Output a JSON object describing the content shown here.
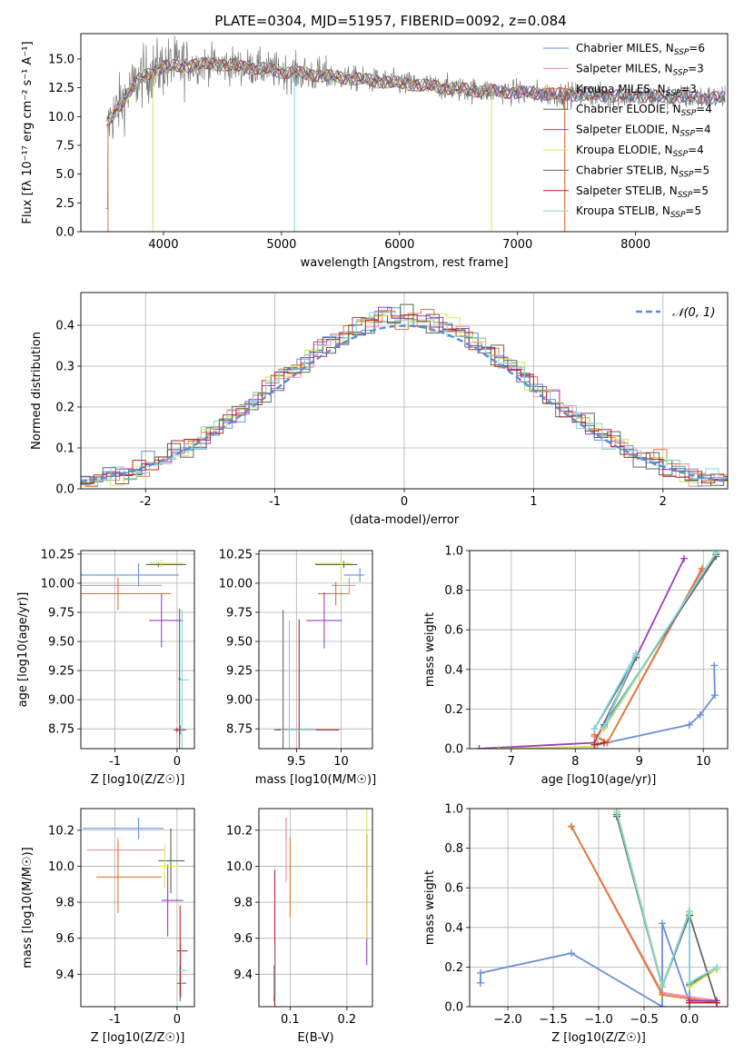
{
  "figure_title": "PLATE=0304, MJD=51957, FIBERID=0092, z=0.084",
  "colors": {
    "Chabrier MILES": "#6a8fd6",
    "Salpeter MILES": "#ea8fa6",
    "Kroupa MILES": "#e07833",
    "Chabrier ELODIE": "#4f6b45",
    "Salpeter ELODIE": "#9b3dbf",
    "Kroupa ELODIE": "#d9e35a",
    "Chabrier STELIB": "#666666",
    "Salpeter STELIB": "#b82828",
    "Kroupa STELIB": "#7fd6dd"
  },
  "chart_data": [
    {
      "id": "spectrum",
      "type": "line",
      "title": "PLATE=0304, MJD=51957, FIBERID=0092, z=0.084",
      "xlabel": "wavelength [Angstrom, rest frame]",
      "ylabel": "Flux [fλ 10⁻¹⁷ erg cm⁻² s⁻¹ A⁻¹]",
      "xlim": [
        3300,
        8780
      ],
      "ylim": [
        0,
        17.2
      ],
      "xticks": [
        4000,
        5000,
        6000,
        7000,
        8000
      ],
      "yticks": [
        0.0,
        2.5,
        5.0,
        7.5,
        10.0,
        12.5,
        15.0
      ],
      "grid": false,
      "legend_position": "upper right",
      "legend": [
        "Chabrier MILES, N_SSP=6",
        "Salpeter MILES, N_SSP=3",
        "Kroupa MILES, N_SSP=3",
        "Chabrier ELODIE, N_SSP=4",
        "Salpeter ELODIE, N_SSP=4",
        "Kroupa ELODIE, N_SSP=4",
        "Chabrier STELIB, N_SSP=5",
        "Salpeter STELIB, N_SSP=5",
        "Kroupa STELIB, N_SSP=5"
      ],
      "continuum": {
        "x": [
          3510,
          3600,
          3700,
          3800,
          3900,
          4000,
          4100,
          4200,
          4400,
          4600,
          4800,
          5000,
          5200,
          5400,
          5600,
          5800,
          6000,
          6200,
          6400,
          6600,
          6800,
          7000,
          7200,
          7400,
          7600,
          7800,
          8000,
          8200,
          8400,
          8760
        ],
        "y": [
          9.2,
          10.6,
          12.0,
          13.3,
          13.9,
          14.3,
          14.4,
          14.4,
          14.6,
          14.4,
          14.2,
          13.9,
          13.7,
          13.5,
          13.3,
          13.1,
          12.9,
          12.7,
          12.5,
          12.3,
          12.2,
          12.1,
          12.0,
          11.9,
          11.9,
          11.8,
          11.8,
          11.7,
          11.7,
          11.6
        ]
      }
    },
    {
      "id": "residuals",
      "type": "histogram",
      "xlabel": "(data-model)/error",
      "ylabel": "Normed distribution",
      "xlim": [
        -2.5,
        2.5
      ],
      "ylim": [
        0,
        0.48
      ],
      "xticks": [
        -2,
        -1,
        0,
        1,
        2
      ],
      "yticks": [
        0.0,
        0.1,
        0.2,
        0.3,
        0.4
      ],
      "grid": true,
      "legend": [
        "𝒩(0, 1)"
      ],
      "legend_position": "upper right",
      "bin_width": 0.1
    },
    {
      "id": "age_vs_z",
      "type": "errorbar",
      "xlabel": "Z [log10(Z/Z☉)]",
      "ylabel": "age  [log10(age/yr)]",
      "xlim": [
        -1.55,
        0.28
      ],
      "ylim": [
        8.58,
        10.28
      ],
      "xticks": [
        -1,
        0
      ],
      "yticks": [
        8.75,
        9.0,
        9.25,
        9.5,
        9.75,
        10.0,
        10.25
      ],
      "ytick_labels": [
        "8.75",
        "9.00",
        "9.25",
        "9.50",
        "9.75",
        "10.00",
        "10.25"
      ],
      "grid": true,
      "points": [
        {
          "series": "Chabrier MILES",
          "x": -0.62,
          "xerr": [
            0.95,
            0.65
          ],
          "y": 10.07,
          "yerr": 0.1
        },
        {
          "series": "Salpeter MILES",
          "x": -0.95,
          "xerr": [
            0.6,
            0.7
          ],
          "y": 9.98,
          "yerr": 0.07
        },
        {
          "series": "Kroupa MILES",
          "x": -0.95,
          "xerr": [
            0.6,
            0.85
          ],
          "y": 9.91,
          "yerr": 0.14
        },
        {
          "series": "Chabrier ELODIE",
          "x": -0.3,
          "xerr": [
            0.2,
            0.45
          ],
          "y": 10.16,
          "yerr": 0.02
        },
        {
          "series": "Salpeter ELODIE",
          "x": -0.25,
          "xerr": [
            0.2,
            0.35
          ],
          "y": 9.68,
          "yerr": 0.23
        },
        {
          "series": "Kroupa ELODIE",
          "x": -0.25,
          "xerr": [
            0.2,
            0.35
          ],
          "y": 10.17,
          "yerr": 0.03
        },
        {
          "series": "Chabrier STELIB",
          "x": 0.05,
          "xerr": [
            0.05,
            0.1
          ],
          "y": 8.74,
          "yerr": 0.04
        },
        {
          "series": "Salpeter STELIB",
          "x": 0.0,
          "xerr": [
            0.05,
            0.12
          ],
          "y": 8.74,
          "yerr": 0.02
        },
        {
          "series": "Kroupa STELIB",
          "x": 0.08,
          "xerr": [
            0.05,
            0.12
          ],
          "y": 9.17,
          "yerr": 0.6
        },
        {
          "series": "Chabrier STELIB",
          "x": 0.04,
          "xerr": [
            0.02,
            0.02
          ],
          "y": 9.18,
          "yerr": 0.6
        }
      ]
    },
    {
      "id": "age_vs_mass",
      "type": "errorbar",
      "xlabel": "mass [log10(M/M☉)]",
      "xlim": [
        9.08,
        10.35
      ],
      "ylim": [
        8.58,
        10.28
      ],
      "xticks": [
        9.5,
        10.0
      ],
      "yticks": [
        8.75,
        9.0,
        9.25,
        9.5,
        9.75,
        10.0,
        10.25
      ],
      "ytick_labels": [
        "8.75",
        "9.00",
        "9.25",
        "9.50",
        "9.75",
        "10.00",
        "10.25"
      ],
      "grid": true,
      "points": [
        {
          "series": "Chabrier MILES",
          "x": 10.21,
          "xerr": [
            0.18,
            0.05
          ],
          "y": 10.07,
          "yerr": 0.06
        },
        {
          "series": "Salpeter MILES",
          "x": 10.09,
          "xerr": [
            0.2,
            0.07
          ],
          "y": 9.98,
          "yerr": 0.07
        },
        {
          "series": "Kroupa MILES",
          "x": 9.94,
          "xerr": [
            0.2,
            0.15
          ],
          "y": 9.91,
          "yerr": 0.1
        },
        {
          "series": "Chabrier ELODIE",
          "x": 10.03,
          "xerr": [
            0.32,
            0.15
          ],
          "y": 10.16,
          "yerr": 0.03
        },
        {
          "series": "Salpeter ELODIE",
          "x": 9.81,
          "xerr": [
            0.2,
            0.2
          ],
          "y": 9.68,
          "yerr": 0.24
        },
        {
          "series": "Kroupa ELODIE",
          "x": 10.0,
          "xerr": [
            0.3,
            0.12
          ],
          "y": 10.17,
          "yerr": 0.2
        },
        {
          "series": "Chabrier STELIB",
          "x": 9.35,
          "xerr": [
            0.1,
            0.2
          ],
          "y": 8.74,
          "yerr": 1.03
        },
        {
          "series": "Salpeter STELIB",
          "x": 9.53,
          "xerr": [
            0.25,
            0.45
          ],
          "y": 8.74,
          "yerr": 0.95
        },
        {
          "series": "Kroupa STELIB",
          "x": 9.42,
          "xerr": [
            0.1,
            0.3
          ],
          "y": 8.74,
          "yerr": 0.94
        }
      ]
    },
    {
      "id": "mass_weight_vs_age",
      "type": "line",
      "xlabel": "age  [log10(age/yr)]",
      "ylabel": "mass weight",
      "xlim": [
        6.35,
        10.38
      ],
      "ylim": [
        0,
        1.0
      ],
      "xticks": [
        7,
        8,
        9,
        10
      ],
      "yticks": [
        0.0,
        0.2,
        0.4,
        0.6,
        0.8,
        1.0
      ],
      "grid": true,
      "series": [
        {
          "name": "Chabrier MILES",
          "x": [
            8.35,
            9.78,
            9.95,
            10.18,
            10.17
          ],
          "y": [
            0.02,
            0.12,
            0.17,
            0.27,
            0.42
          ]
        },
        {
          "name": "Salpeter MILES",
          "x": [
            8.3,
            8.5,
            9.98
          ],
          "y": [
            0.06,
            0.03,
            0.9
          ]
        },
        {
          "name": "Kroupa MILES",
          "x": [
            8.3,
            8.5,
            9.98
          ],
          "y": [
            0.07,
            0.03,
            0.91
          ]
        },
        {
          "name": "Chabrier ELODIE",
          "x": [
            8.3,
            8.95,
            8.45,
            10.2
          ],
          "y": [
            0.01,
            0.47,
            0.11,
            0.98
          ]
        },
        {
          "name": "Salpeter ELODIE",
          "x": [
            6.5,
            8.3,
            9.7
          ],
          "y": [
            0.0,
            0.03,
            0.96
          ]
        },
        {
          "name": "Kroupa ELODIE",
          "x": [
            6.8,
            8.3,
            8.95,
            8.45,
            10.2
          ],
          "y": [
            0.0,
            0.01,
            0.47,
            0.1,
            0.99
          ]
        },
        {
          "name": "Chabrier STELIB",
          "x": [
            8.3,
            8.95,
            8.45,
            10.2
          ],
          "y": [
            0.1,
            0.46,
            0.12,
            0.97
          ]
        },
        {
          "name": "Salpeter STELIB",
          "x": [
            8.3,
            8.45
          ],
          "y": [
            0.02,
            0.03
          ]
        },
        {
          "name": "Kroupa STELIB",
          "x": [
            8.3,
            8.95,
            8.45,
            10.2
          ],
          "y": [
            0.1,
            0.48,
            0.11,
            0.99
          ]
        }
      ]
    },
    {
      "id": "mass_vs_z",
      "type": "errorbar",
      "xlabel": "Z [log10(Z/Z☉)]",
      "ylabel": "mass [log10(M/M☉)]",
      "xlim": [
        -1.55,
        0.28
      ],
      "ylim": [
        9.22,
        10.32
      ],
      "xticks": [
        -1,
        0
      ],
      "yticks": [
        9.4,
        9.6,
        9.8,
        10.0,
        10.2
      ],
      "grid": true,
      "points": [
        {
          "series": "Chabrier MILES",
          "x": -0.62,
          "xerr": [
            0.9,
            0.4
          ],
          "y": 10.21,
          "yerr": 0.06
        },
        {
          "series": "Salpeter MILES",
          "x": -0.95,
          "xerr": [
            0.5,
            0.75
          ],
          "y": 10.09,
          "yerr": 0.07
        },
        {
          "series": "Kroupa MILES",
          "x": -0.95,
          "xerr": [
            0.35,
            0.7
          ],
          "y": 9.94,
          "yerr": 0.2
        },
        {
          "series": "Chabrier ELODIE",
          "x": -0.1,
          "xerr": [
            0.2,
            0.22
          ],
          "y": 10.03,
          "yerr": 0.18
        },
        {
          "series": "Salpeter ELODIE",
          "x": -0.15,
          "xerr": [
            0.1,
            0.25
          ],
          "y": 9.81,
          "yerr": 0.2
        },
        {
          "series": "Kroupa ELODIE",
          "x": -0.2,
          "xerr": [
            0.1,
            0.22
          ],
          "y": 10.0,
          "yerr": 0.12
        },
        {
          "series": "Chabrier STELIB",
          "x": 0.05,
          "xerr": [
            0.05,
            0.1
          ],
          "y": 9.35,
          "yerr": 0.1
        },
        {
          "series": "Salpeter STELIB",
          "x": 0.05,
          "xerr": [
            0.05,
            0.12
          ],
          "y": 9.53,
          "yerr": 0.25
        },
        {
          "series": "Kroupa STELIB",
          "x": 0.07,
          "xerr": [
            0.05,
            0.1
          ],
          "y": 9.42,
          "yerr": 0.15
        }
      ]
    },
    {
      "id": "mass_vs_ebv",
      "type": "errorbar",
      "xlabel": "E(B-V)",
      "xlim": [
        0.045,
        0.245
      ],
      "ylim": [
        9.22,
        10.32
      ],
      "xticks": [
        0.1,
        0.2
      ],
      "yticks": [
        9.4,
        9.6,
        9.8,
        10.0,
        10.2
      ],
      "grid": true,
      "points": [
        {
          "series": "Chabrier MILES",
          "x": 0.093,
          "y": 10.21,
          "yerr": 0.06
        },
        {
          "series": "Salpeter MILES",
          "x": 0.093,
          "y": 10.09,
          "yerr": 0.18
        },
        {
          "series": "Kroupa MILES",
          "x": 0.1,
          "y": 9.94,
          "yerr": 0.22
        },
        {
          "series": "Chabrier ELODIE",
          "x": 0.235,
          "y": 10.03,
          "yerr": 0.15
        },
        {
          "series": "Salpeter ELODIE",
          "x": 0.235,
          "y": 9.81,
          "yerr": 0.36
        },
        {
          "series": "Kroupa ELODIE",
          "x": 0.235,
          "y": 10.0,
          "yerr": 0.4
        },
        {
          "series": "Chabrier STELIB",
          "x": 0.072,
          "y": 9.35,
          "yerr": 0.1
        },
        {
          "series": "Salpeter STELIB",
          "x": 0.073,
          "y": 9.53,
          "yerr": 0.45
        },
        {
          "series": "Kroupa STELIB",
          "x": 0.074,
          "y": 9.42,
          "yerr": 0.15
        }
      ]
    },
    {
      "id": "mass_weight_vs_z",
      "type": "line",
      "xlabel": "Z [log10(Z/Z☉)]",
      "ylabel": "mass weight",
      "xlim": [
        -2.42,
        0.42
      ],
      "ylim": [
        0,
        1.0
      ],
      "xticks": [
        -2.0,
        -1.5,
        -1.0,
        -0.5,
        0.0
      ],
      "xtick_labels": [
        "−2.0",
        "−1.5",
        "−1.0",
        "−0.5",
        "0.0"
      ],
      "yticks": [
        0.0,
        0.2,
        0.4,
        0.6,
        0.8,
        1.0
      ],
      "grid": true,
      "series": [
        {
          "name": "Chabrier MILES",
          "x": [
            -2.3,
            -2.3,
            -1.3,
            -0.3,
            -0.3,
            0.0,
            0.0
          ],
          "y": [
            0.12,
            0.17,
            0.27,
            0.0,
            0.42,
            0.02,
            0.47
          ]
        },
        {
          "name": "Salpeter MILES",
          "x": [
            -1.3,
            -0.3,
            0.3
          ],
          "y": [
            0.91,
            0.07,
            0.03
          ]
        },
        {
          "name": "Kroupa MILES",
          "x": [
            -1.3,
            -0.3,
            0.3
          ],
          "y": [
            0.91,
            0.06,
            0.02
          ]
        },
        {
          "name": "Chabrier ELODIE",
          "x": [
            -0.8,
            -0.3,
            0.0,
            0.0,
            0.3
          ],
          "y": [
            0.97,
            0.1,
            0.48,
            0.11,
            0.19
          ]
        },
        {
          "name": "Salpeter ELODIE",
          "x": [
            0.0,
            0.3
          ],
          "y": [
            0.03,
            0.03
          ]
        },
        {
          "name": "Kroupa ELODIE",
          "x": [
            -0.8,
            -0.3,
            0.0,
            0.0,
            0.3
          ],
          "y": [
            0.99,
            0.11,
            0.47,
            0.1,
            0.19
          ]
        },
        {
          "name": "Chabrier STELIB",
          "x": [
            -0.8,
            -0.3,
            0.0,
            0.3
          ],
          "y": [
            0.96,
            0.1,
            0.46,
            0.02
          ]
        },
        {
          "name": "Salpeter STELIB",
          "x": [
            0.0,
            0.3
          ],
          "y": [
            0.02,
            0.02
          ]
        },
        {
          "name": "Kroupa STELIB",
          "x": [
            -0.8,
            -0.3,
            0.0,
            0.0,
            0.3
          ],
          "y": [
            0.98,
            0.1,
            0.48,
            0.12,
            0.2
          ]
        }
      ]
    }
  ]
}
